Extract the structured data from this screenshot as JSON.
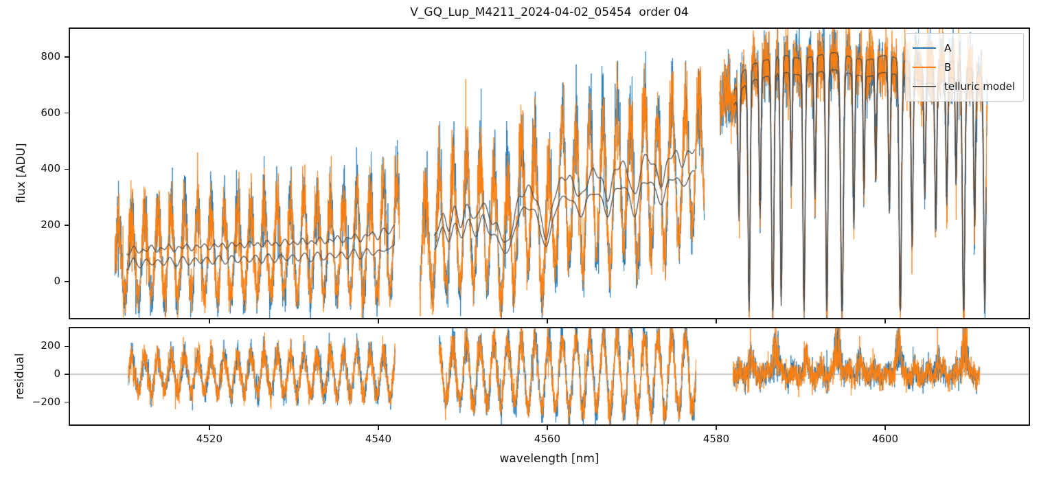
{
  "figure": {
    "title": "V_GQ_Lup_M4211_2024-04-02_05454  order 04",
    "background": "#ffffff"
  },
  "seed": 7,
  "colors": {
    "A": "#1f77b4",
    "B": "#ff7f0e",
    "telluric_model": "#4a4a4a",
    "legend_model_line": "#595959",
    "axis": "#1a1a1a",
    "zero_line": "#8a8a8a"
  },
  "legend": {
    "entries": [
      {
        "label": "A",
        "color": "#1f77b4"
      },
      {
        "label": "B",
        "color": "#ff7f0e"
      },
      {
        "label": "telluric model",
        "color": "#595959"
      }
    ]
  },
  "chart_data": {
    "type": "line",
    "title": "V_GQ_Lup_M4211_2024-04-02_05454  order 04",
    "xlabel": "wavelength [nm]",
    "x": {
      "lim": [
        4503.5,
        4617.0
      ],
      "ticks": [
        4520,
        4540,
        4560,
        4580,
        4600
      ]
    },
    "panels": {
      "flux": {
        "ylabel": "flux [ADU]",
        "ylim": [
          -130,
          900
        ],
        "yticks": [
          0,
          200,
          400,
          600,
          800
        ],
        "grid": false
      },
      "residual": {
        "ylabel": "residual",
        "ylim": [
          -360,
          330
        ],
        "yticks": [
          -200,
          0,
          200
        ],
        "zero_line": true
      }
    },
    "series": [
      "A",
      "B",
      "telluric model"
    ],
    "series_variants": {
      "A": {
        "ampScale": 1.05,
        "noiseScale": 1.0,
        "xShift": 0,
        "seedOff": 1
      },
      "B": {
        "ampScale": 0.94,
        "noiseScale": 1.06,
        "xShift": 0.045,
        "seedOff": 2
      }
    },
    "flux_segments": [
      {
        "seed": 10,
        "xrange": [
          4508.8,
          4542.5
        ],
        "model_range": [
          4510.2,
          4542.0
        ],
        "model_keypoints": [
          [
            4510.2,
            95
          ],
          [
            4511,
            118
          ],
          [
            4512,
            105
          ],
          [
            4513,
            122
          ],
          [
            4514,
            110
          ],
          [
            4515,
            125
          ],
          [
            4516,
            113
          ],
          [
            4517,
            127
          ],
          [
            4518,
            117
          ],
          [
            4519,
            129
          ],
          [
            4520,
            121
          ],
          [
            4521,
            131
          ],
          [
            4522,
            125
          ],
          [
            4523,
            134
          ],
          [
            4524,
            127
          ],
          [
            4525,
            137
          ],
          [
            4526,
            129
          ],
          [
            4527,
            140
          ],
          [
            4528,
            131
          ],
          [
            4529,
            143
          ],
          [
            4530,
            134
          ],
          [
            4531,
            146
          ],
          [
            4532,
            137
          ],
          [
            4533,
            150
          ],
          [
            4534,
            141
          ],
          [
            4535,
            156
          ],
          [
            4536,
            145
          ],
          [
            4537,
            163
          ],
          [
            4538,
            149
          ],
          [
            4539,
            173
          ],
          [
            4540,
            157
          ],
          [
            4540.8,
            190
          ],
          [
            4541.4,
            168
          ],
          [
            4542,
            212
          ]
        ],
        "model_wiggle": {
          "amp": 8,
          "period": 1.05
        },
        "model2": {
          "scale": 0.72,
          "offset": -15,
          "wiggle_amp": 13,
          "wiggle_period": 1.45
        },
        "lines": [],
        "model_floor": -110,
        "fringe_period": 1.57,
        "fringe_phase": 0.8,
        "fringe_amp": [
          [
            4508.8,
            140
          ],
          [
            4513,
            162
          ],
          [
            4517,
            158
          ],
          [
            4521,
            168
          ],
          [
            4525,
            163
          ],
          [
            4529,
            170
          ],
          [
            4533,
            166
          ],
          [
            4537,
            176
          ],
          [
            4540,
            188
          ],
          [
            4542.5,
            200
          ]
        ],
        "noise": 33,
        "peak_noise": 0.9,
        "spike_prob": 0.012,
        "spike_amp": 130
      },
      {
        "seed": 20,
        "xrange": [
          4544.9,
          4578.6
        ],
        "model_range": [
          4546.6,
          4577.5
        ],
        "model_keypoints": [
          [
            4546.6,
            150
          ],
          [
            4547.5,
            235
          ],
          [
            4548.3,
            190
          ],
          [
            4549,
            255
          ],
          [
            4549.8,
            205
          ],
          [
            4550.6,
            270
          ],
          [
            4551.5,
            215
          ],
          [
            4552.3,
            285
          ],
          [
            4553,
            235
          ],
          [
            4553.8,
            205
          ],
          [
            4554.6,
            165
          ],
          [
            4555.4,
            135
          ],
          [
            4556.2,
            250
          ],
          [
            4557,
            310
          ],
          [
            4557.8,
            330
          ],
          [
            4558.6,
            300
          ],
          [
            4559.4,
            210
          ],
          [
            4560,
            160
          ],
          [
            4560.8,
            300
          ],
          [
            4561.6,
            355
          ],
          [
            4562.4,
            375
          ],
          [
            4563.2,
            340
          ],
          [
            4564,
            300
          ],
          [
            4564.8,
            360
          ],
          [
            4565.6,
            395
          ],
          [
            4566.4,
            360
          ],
          [
            4567.2,
            300
          ],
          [
            4568,
            390
          ],
          [
            4568.8,
            420
          ],
          [
            4569.6,
            380
          ],
          [
            4570.4,
            300
          ],
          [
            4571.2,
            420
          ],
          [
            4572,
            440
          ],
          [
            4572.8,
            400
          ],
          [
            4573.6,
            350
          ],
          [
            4574.4,
            440
          ],
          [
            4575.2,
            455
          ],
          [
            4576,
            420
          ],
          [
            4576.8,
            460
          ],
          [
            4577.5,
            475
          ]
        ],
        "model_wiggle": {
          "amp": 14,
          "period": 1.25
        },
        "model2": {
          "scale": 0.84,
          "offset": -12,
          "wiggle_amp": 10,
          "wiggle_period": 1.55
        },
        "lines": [],
        "model_floor": -110,
        "fringe_period": 1.62,
        "fringe_phase": 2.0,
        "fringe_amp": [
          [
            4544.9,
            190
          ],
          [
            4550,
            210
          ],
          [
            4555,
            225
          ],
          [
            4560,
            245
          ],
          [
            4565,
            255
          ],
          [
            4570,
            265
          ],
          [
            4574,
            255
          ],
          [
            4578.6,
            245
          ]
        ],
        "noise": 42,
        "peak_noise": 0.85,
        "spike_prob": 0.01,
        "spike_amp": 120
      },
      {
        "seed": 30,
        "xrange": [
          4580.4,
          4612.1
        ],
        "model_range": [
          4582.1,
          4612.0
        ],
        "model_keypoints": [
          [
            4582.1,
            680
          ],
          [
            4583,
            740
          ],
          [
            4584,
            770
          ],
          [
            4586,
            790
          ],
          [
            4588,
            805
          ],
          [
            4590,
            795
          ],
          [
            4592,
            805
          ],
          [
            4594,
            815
          ],
          [
            4596,
            800
          ],
          [
            4598,
            790
          ],
          [
            4600,
            805
          ],
          [
            4602,
            790
          ],
          [
            4604,
            775
          ],
          [
            4606,
            765
          ],
          [
            4608,
            785
          ],
          [
            4610,
            760
          ],
          [
            4612,
            735
          ]
        ],
        "model_wiggle": {
          "amp": 0,
          "period": 1
        },
        "model2": {
          "scale": 0.93,
          "offset": -4,
          "wiggle_amp": 0,
          "wiggle_period": 1
        },
        "lines": [
          [
            4582.7,
            450,
            0.15
          ],
          [
            4583.9,
            820,
            0.18
          ],
          [
            4585.2,
            500,
            0.15
          ],
          [
            4586.7,
            880,
            0.2
          ],
          [
            4587.7,
            830,
            0.16
          ],
          [
            4588.9,
            400,
            0.14
          ],
          [
            4590.4,
            860,
            0.18
          ],
          [
            4591.7,
            450,
            0.15
          ],
          [
            4593.1,
            870,
            0.18
          ],
          [
            4594.9,
            900,
            0.22
          ],
          [
            4596.3,
            550,
            0.15
          ],
          [
            4597.5,
            420,
            0.14
          ],
          [
            4598.9,
            380,
            0.14
          ],
          [
            4600.5,
            500,
            0.16
          ],
          [
            4601.8,
            880,
            0.2
          ],
          [
            4603.2,
            600,
            0.16
          ],
          [
            4604.7,
            420,
            0.15
          ],
          [
            4606.0,
            520,
            0.16
          ],
          [
            4607.3,
            450,
            0.15
          ],
          [
            4608.4,
            380,
            0.14
          ],
          [
            4609.3,
            860,
            0.2
          ],
          [
            4610.6,
            500,
            0.15
          ],
          [
            4611.8,
            800,
            0.18
          ]
        ],
        "model_floor": -105,
        "fringe_period": 1.6,
        "fringe_phase": 0,
        "fringe_amp": [
          [
            4580.4,
            26
          ],
          [
            4612.1,
            26
          ]
        ],
        "noise": 54,
        "peak_noise": 0,
        "spike_prob": 0.02,
        "spike_amp": 95
      }
    ],
    "residual_segments": [
      {
        "seed": 40,
        "xrange": [
          4510.4,
          4542.0
        ],
        "fringe_period": 1.57,
        "fringe_phase": 0.8,
        "fringe_amp": [
          [
            4510.4,
            115
          ],
          [
            4520,
            135
          ],
          [
            4530,
            150
          ],
          [
            4542,
            168
          ]
        ],
        "noise": 40,
        "peak_noise": 0.3,
        "spike_prob": 0.008,
        "spike_amp": 90,
        "bumps": []
      },
      {
        "seed": 50,
        "xrange": [
          4547.2,
          4577.6
        ],
        "fringe_period": 1.62,
        "fringe_phase": 2.0,
        "fringe_amp": [
          [
            4547.2,
            200
          ],
          [
            4555,
            235
          ],
          [
            4562,
            262
          ],
          [
            4570,
            285
          ],
          [
            4577.6,
            265
          ]
        ],
        "noise": 50,
        "peak_noise": 0.3,
        "spike_prob": 0.006,
        "spike_amp": 100,
        "bumps": []
      },
      {
        "seed": 60,
        "xrange": [
          4582.0,
          4611.2
        ],
        "fringe_period": 1.6,
        "fringe_phase": 0,
        "fringe_amp": [
          [
            4582.0,
            30
          ],
          [
            4611.2,
            30
          ]
        ],
        "noise": 46,
        "peak_noise": 0,
        "spike_prob": 0.004,
        "spike_amp": 120,
        "bumps": [
          [
            4584.0,
            120,
            0.3
          ],
          [
            4587.0,
            210,
            0.4
          ],
          [
            4590.6,
            110,
            0.3
          ],
          [
            4594.4,
            230,
            0.45
          ],
          [
            4597.0,
            90,
            0.3
          ],
          [
            4601.6,
            230,
            0.4
          ],
          [
            4606.2,
            100,
            0.3
          ],
          [
            4609.4,
            250,
            0.4
          ]
        ]
      }
    ]
  }
}
